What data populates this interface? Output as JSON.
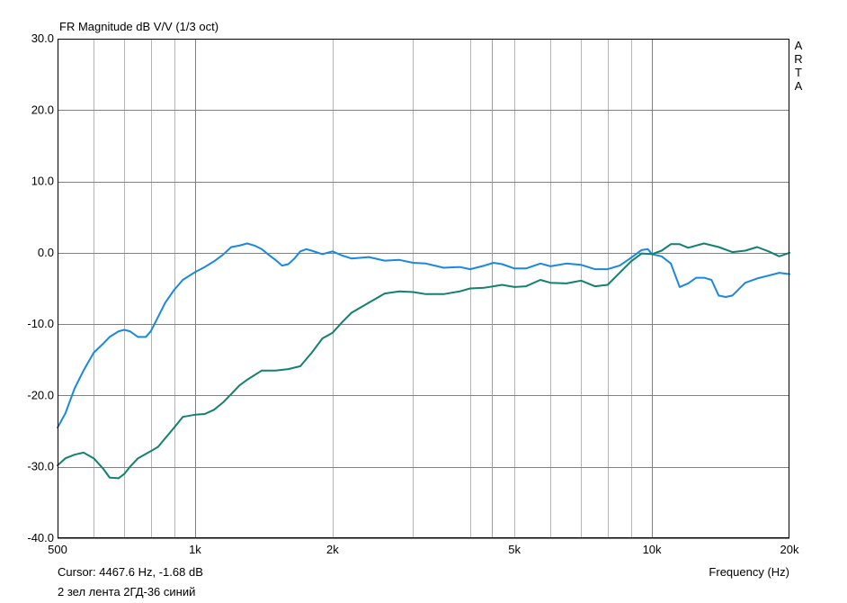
{
  "title": "FR Magnitude dB V/V (1/3 oct)",
  "watermark": [
    "A",
    "R",
    "T",
    "A"
  ],
  "cursor_readout": "Cursor: 4467.6 Hz, -1.68 dB",
  "legend_text": "2 зел лента 2ГД-36 синий",
  "colors": {
    "background": "#ffffff",
    "grid": "#b4b4b4",
    "grid_major": "#808080",
    "frame": "#000000",
    "cursor": "#d8a000"
  },
  "chart_data": {
    "type": "line",
    "title": "FR Magnitude dB V/V (1/3 oct)",
    "xlabel": "Frequency (Hz)",
    "ylabel": "",
    "x_scale": "log",
    "xlim": [
      500,
      20000
    ],
    "ylim": [
      -40,
      30
    ],
    "grid": true,
    "x_ticks": [
      {
        "value": 500,
        "label": "500"
      },
      {
        "value": 1000,
        "label": "1k"
      },
      {
        "value": 2000,
        "label": "2k"
      },
      {
        "value": 5000,
        "label": "5k"
      },
      {
        "value": 10000,
        "label": "10k"
      },
      {
        "value": 20000,
        "label": "20k"
      }
    ],
    "x_minor_grid": [
      600,
      700,
      800,
      900,
      2000,
      3000,
      4000,
      5000,
      6000,
      7000,
      8000,
      9000
    ],
    "x_major_grid": [
      1000,
      10000
    ],
    "y_ticks": [
      {
        "value": 30,
        "label": "30.0"
      },
      {
        "value": 20,
        "label": "20.0"
      },
      {
        "value": 10,
        "label": "10.0"
      },
      {
        "value": 0,
        "label": "0.0"
      },
      {
        "value": -10,
        "label": "-10.0"
      },
      {
        "value": -20,
        "label": "-20.0"
      },
      {
        "value": -30,
        "label": "-30.0"
      },
      {
        "value": -40,
        "label": "-40.0"
      }
    ],
    "cursor_x": 4467.6,
    "series": [
      {
        "color": "#1a88e0",
        "x": [
          500,
          520,
          545,
          570,
          600,
          630,
          650,
          680,
          700,
          720,
          750,
          780,
          800,
          830,
          860,
          900,
          940,
          1000,
          1050,
          1100,
          1150,
          1200,
          1250,
          1300,
          1350,
          1400,
          1450,
          1500,
          1550,
          1600,
          1650,
          1700,
          1750,
          1800,
          1900,
          2000,
          2100,
          2200,
          2400,
          2600,
          2800,
          3000,
          3200,
          3500,
          3800,
          4000,
          4300,
          4500,
          4700,
          5000,
          5300,
          5700,
          6000,
          6500,
          7000,
          7500,
          8000,
          8500,
          9000,
          9500,
          9800,
          10000,
          10500,
          11000,
          11500,
          12000,
          12500,
          13000,
          13500,
          14000,
          14500,
          15000,
          16000,
          17000,
          18000,
          19000,
          20000
        ],
        "y": [
          -24.5,
          -22.5,
          -19,
          -16.5,
          -14,
          -12.7,
          -11.8,
          -11,
          -10.8,
          -11,
          -11.8,
          -11.8,
          -11,
          -9,
          -7,
          -5.2,
          -3.8,
          -2.7,
          -2,
          -1.2,
          -0.3,
          0.8,
          1,
          1.3,
          1,
          0.5,
          -0.3,
          -1,
          -1.8,
          -1.6,
          -0.8,
          0.2,
          0.5,
          0.3,
          -0.2,
          0.2,
          -0.4,
          -0.8,
          -0.6,
          -1.1,
          -1,
          -1.4,
          -1.5,
          -2.1,
          -2,
          -2.3,
          -1.8,
          -1.4,
          -1.6,
          -2.2,
          -2.2,
          -1.5,
          -1.9,
          -1.5,
          -1.7,
          -2.3,
          -2.3,
          -1.8,
          -0.7,
          0.4,
          0.5,
          -0.2,
          -0.5,
          -1.5,
          -4.8,
          -4.3,
          -3.5,
          -3.5,
          -3.8,
          -6,
          -6.2,
          -6,
          -4.2,
          -3.6,
          -3.2,
          -2.8,
          -3
        ]
      },
      {
        "color": "#138070",
        "x": [
          500,
          520,
          545,
          570,
          600,
          630,
          650,
          680,
          700,
          720,
          750,
          780,
          800,
          830,
          860,
          900,
          940,
          1000,
          1050,
          1100,
          1150,
          1200,
          1250,
          1300,
          1400,
          1500,
          1600,
          1700,
          1800,
          1900,
          2000,
          2100,
          2200,
          2400,
          2600,
          2800,
          3000,
          3200,
          3500,
          3800,
          4000,
          4300,
          4500,
          4700,
          5000,
          5300,
          5700,
          6000,
          6500,
          7000,
          7500,
          8000,
          8500,
          9000,
          9500,
          10000,
          10500,
          11000,
          11500,
          12000,
          13000,
          14000,
          15000,
          16000,
          17000,
          18000,
          19000,
          20000
        ],
        "y": [
          -29.8,
          -28.8,
          -28.3,
          -28,
          -28.8,
          -30.3,
          -31.5,
          -31.6,
          -31,
          -30,
          -28.8,
          -28.2,
          -27.8,
          -27.2,
          -26,
          -24.5,
          -23,
          -22.7,
          -22.6,
          -22,
          -21,
          -19.8,
          -18.6,
          -17.8,
          -16.5,
          -16.5,
          -16.3,
          -15.9,
          -14,
          -12,
          -11.2,
          -9.7,
          -8.4,
          -7,
          -5.7,
          -5.4,
          -5.5,
          -5.8,
          -5.8,
          -5.4,
          -5,
          -4.9,
          -4.7,
          -4.5,
          -4.8,
          -4.7,
          -3.8,
          -4.2,
          -4.3,
          -3.9,
          -4.7,
          -4.5,
          -2.8,
          -1.2,
          -0.1,
          -0.2,
          0.3,
          1.2,
          1.2,
          0.7,
          1.3,
          0.8,
          0.1,
          0.3,
          0.8,
          0.2,
          -0.5,
          0
        ]
      }
    ]
  }
}
